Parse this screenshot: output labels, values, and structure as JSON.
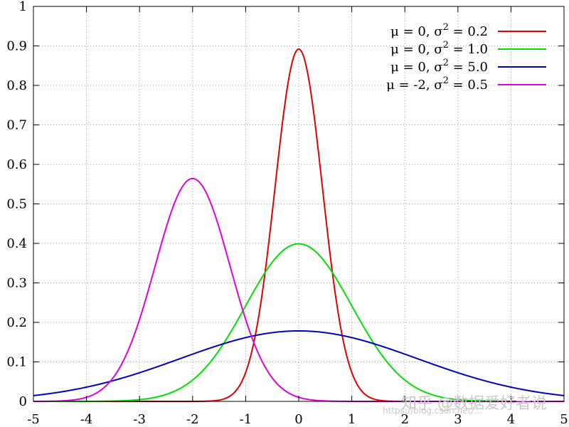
{
  "chart_data": {
    "type": "line",
    "title": "",
    "xlabel": "",
    "ylabel": "",
    "xlim": [
      -5,
      5
    ],
    "ylim": [
      0,
      1
    ],
    "grid": true,
    "legend_position": "top-right",
    "x_ticks": [
      "-5",
      "-4",
      "-3",
      "-2",
      "-1",
      "0",
      "1",
      "2",
      "3",
      "4",
      "5"
    ],
    "y_ticks": [
      "0",
      "0.1",
      "0.2",
      "0.3",
      "0.4",
      "0.5",
      "0.6",
      "0.7",
      "0.8",
      "0.9",
      "1"
    ],
    "series": [
      {
        "legend_prefix": "μ =  0, σ",
        "legend_sup": "2",
        "legend_suffix": " = 0.2",
        "mu": 0,
        "variance": 0.2,
        "color": "#e00000"
      },
      {
        "legend_prefix": "μ =  0, σ",
        "legend_sup": "2",
        "legend_suffix": " = 1.0",
        "mu": 0,
        "variance": 1.0,
        "color": "#00e000"
      },
      {
        "legend_prefix": "μ =  0, σ",
        "legend_sup": "2",
        "legend_suffix": " = 5.0",
        "mu": 0,
        "variance": 5.0,
        "color": "#0000c0"
      },
      {
        "legend_prefix": "μ = -2, σ",
        "legend_sup": "2",
        "legend_suffix": " = 0.5",
        "mu": -2,
        "variance": 0.5,
        "color": "#e000e0"
      }
    ]
  },
  "watermark": {
    "text": "知乎 @数据爱好者说",
    "url_text": "https://blog.csdn.net/..."
  }
}
